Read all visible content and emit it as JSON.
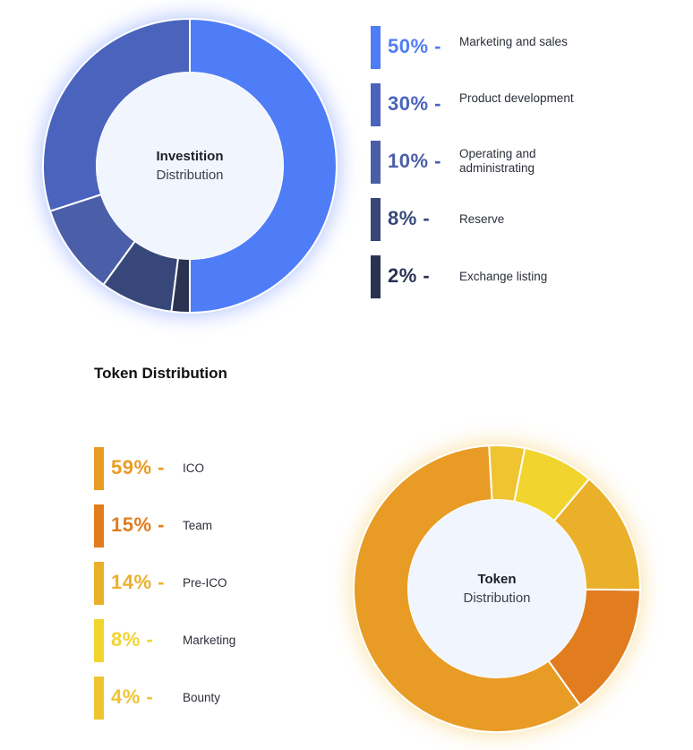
{
  "section_heading": "Token Distribution",
  "chart_data": [
    {
      "type": "pie",
      "center_label_bold": "Investition",
      "center_label": "Distribution",
      "categories": [
        "Marketing and sales",
        "Product development",
        "Operating and administrating",
        "Reserve",
        "Exchange listing"
      ],
      "values": [
        50,
        30,
        10,
        8,
        2
      ],
      "percent_labels": [
        "50% -",
        "30% -",
        "10% -",
        "8% -",
        "2% -"
      ],
      "colors": [
        "#4f7cf7",
        "#4a63bd",
        "#4b5ea8",
        "#38477a",
        "#2a3352"
      ],
      "legend_placement": "right"
    },
    {
      "type": "pie",
      "center_label_bold": "Token",
      "center_label": "Distribution",
      "categories": [
        "ICO",
        "Team",
        "Pre-ICO",
        "Marketing",
        "Bounty"
      ],
      "values": [
        59,
        15,
        14,
        8,
        4
      ],
      "percent_labels": [
        "59% -",
        "15% -",
        "14% -",
        "8% -",
        "4% -"
      ],
      "colors": [
        "#e89c25",
        "#e17d1e",
        "#ebb02a",
        "#f2d42f",
        "#f0c431"
      ],
      "legend_placement": "left"
    }
  ]
}
